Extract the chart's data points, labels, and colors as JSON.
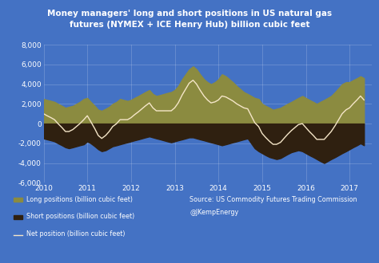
{
  "title_line1": "Money managers' long and short positions in US natural gas",
  "title_line2": "futures (NYMEX + ICE Henry Hub) billion cubic feet",
  "bg_color": "#4472c4",
  "plot_bg_color": "#4472c4",
  "long_color": "#8B8B40",
  "short_color": "#2F2010",
  "net_color": "#F5E6C8",
  "ylim": [
    -6000,
    8000
  ],
  "yticks": [
    -6000,
    -4000,
    -2000,
    0,
    2000,
    4000,
    6000,
    8000
  ],
  "xlim": [
    2010.0,
    2017.5
  ],
  "xtick_labels": [
    "2010",
    "2011",
    "2012",
    "2013",
    "2014",
    "2015",
    "2016",
    "2017"
  ],
  "xtick_positions": [
    2010,
    2011,
    2012,
    2013,
    2014,
    2015,
    2016,
    2017
  ],
  "legend_long": "Long positions (billion cubic feet)",
  "legend_short": "Short positions (billion cubic feet)",
  "legend_net": "Net position (billion cubic feet)",
  "source_line1": "Source: US Commodity Futures Trading Commission",
  "source_line2": "@JKempEnergy",
  "x": [
    2010.0,
    2010.08,
    2010.17,
    2010.25,
    2010.33,
    2010.42,
    2010.5,
    2010.58,
    2010.67,
    2010.75,
    2010.83,
    2010.92,
    2011.0,
    2011.08,
    2011.17,
    2011.25,
    2011.33,
    2011.42,
    2011.5,
    2011.58,
    2011.67,
    2011.75,
    2011.83,
    2011.92,
    2012.0,
    2012.08,
    2012.17,
    2012.25,
    2012.33,
    2012.42,
    2012.5,
    2012.58,
    2012.67,
    2012.75,
    2012.83,
    2012.92,
    2013.0,
    2013.08,
    2013.17,
    2013.25,
    2013.33,
    2013.42,
    2013.5,
    2013.58,
    2013.67,
    2013.75,
    2013.83,
    2013.92,
    2014.0,
    2014.08,
    2014.17,
    2014.25,
    2014.33,
    2014.42,
    2014.5,
    2014.58,
    2014.67,
    2014.75,
    2014.83,
    2014.92,
    2015.0,
    2015.08,
    2015.17,
    2015.25,
    2015.33,
    2015.42,
    2015.5,
    2015.58,
    2015.67,
    2015.75,
    2015.83,
    2015.92,
    2016.0,
    2016.08,
    2016.17,
    2016.25,
    2016.33,
    2016.42,
    2016.5,
    2016.58,
    2016.67,
    2016.75,
    2016.83,
    2016.92,
    2017.0,
    2017.08,
    2017.17,
    2017.25,
    2017.33
  ],
  "long_y": [
    2500,
    2400,
    2300,
    2200,
    2000,
    1800,
    1600,
    1700,
    1800,
    2000,
    2200,
    2500,
    2600,
    2200,
    1800,
    1400,
    1300,
    1500,
    1700,
    2000,
    2200,
    2500,
    2400,
    2300,
    2400,
    2600,
    2800,
    3000,
    3200,
    3400,
    3000,
    2800,
    2900,
    3000,
    3100,
    3200,
    3400,
    3800,
    4500,
    5000,
    5500,
    5800,
    5500,
    5000,
    4500,
    4200,
    4000,
    4200,
    4500,
    5000,
    4800,
    4500,
    4200,
    3800,
    3500,
    3200,
    3000,
    2800,
    2600,
    2500,
    2000,
    1800,
    1600,
    1400,
    1500,
    1600,
    1800,
    2000,
    2200,
    2400,
    2600,
    2800,
    2600,
    2400,
    2200,
    2000,
    2200,
    2400,
    2600,
    2800,
    3200,
    3600,
    4000,
    4200,
    4200,
    4400,
    4600,
    4800,
    4600
  ],
  "short_y": [
    -1500,
    -1600,
    -1700,
    -1800,
    -2000,
    -2200,
    -2400,
    -2500,
    -2400,
    -2300,
    -2200,
    -2100,
    -1800,
    -2000,
    -2300,
    -2600,
    -2800,
    -2700,
    -2500,
    -2300,
    -2200,
    -2100,
    -2000,
    -1900,
    -1800,
    -1700,
    -1600,
    -1500,
    -1400,
    -1300,
    -1400,
    -1500,
    -1600,
    -1700,
    -1800,
    -1900,
    -1800,
    -1700,
    -1600,
    -1500,
    -1400,
    -1400,
    -1500,
    -1600,
    -1700,
    -1800,
    -1900,
    -2000,
    -2100,
    -2200,
    -2100,
    -2000,
    -1900,
    -1800,
    -1700,
    -1600,
    -1500,
    -2000,
    -2500,
    -2800,
    -3000,
    -3200,
    -3400,
    -3500,
    -3600,
    -3500,
    -3300,
    -3100,
    -2900,
    -2800,
    -2700,
    -2800,
    -3000,
    -3200,
    -3400,
    -3600,
    -3800,
    -4000,
    -3800,
    -3600,
    -3400,
    -3200,
    -3000,
    -2800,
    -2600,
    -2400,
    -2200,
    -2000,
    -2200
  ],
  "net_y": [
    1000,
    800,
    600,
    400,
    0,
    -400,
    -800,
    -800,
    -600,
    -300,
    0,
    400,
    800,
    200,
    -500,
    -1200,
    -1500,
    -1200,
    -800,
    -300,
    0,
    400,
    400,
    400,
    600,
    900,
    1200,
    1500,
    1800,
    2100,
    1600,
    1300,
    1300,
    1300,
    1300,
    1300,
    1600,
    2100,
    2900,
    3500,
    4100,
    4400,
    4000,
    3400,
    2800,
    2400,
    2100,
    2200,
    2400,
    2800,
    2700,
    2500,
    2300,
    2000,
    1800,
    1600,
    1500,
    800,
    100,
    -300,
    -1000,
    -1400,
    -1800,
    -2100,
    -2100,
    -1900,
    -1500,
    -1100,
    -700,
    -400,
    -100,
    0,
    -400,
    -800,
    -1200,
    -1600,
    -1600,
    -1600,
    -1200,
    -800,
    -200,
    400,
    1000,
    1400,
    1600,
    2000,
    2400,
    2800,
    2400
  ]
}
